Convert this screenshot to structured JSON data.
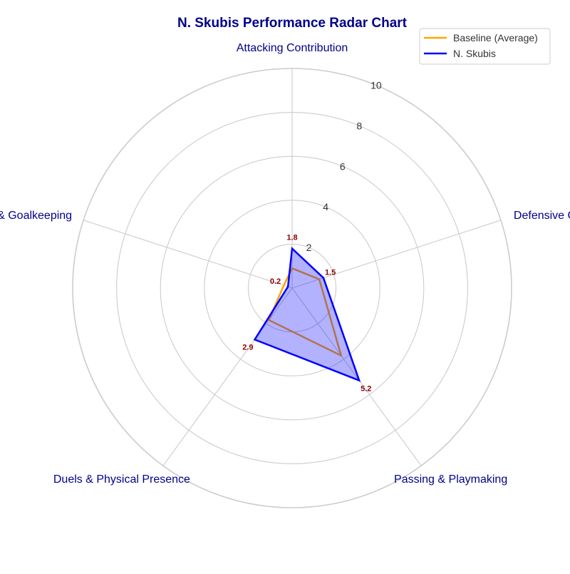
{
  "chart_data": {
    "type": "radar",
    "title": "N. Skubis Performance Radar Chart",
    "categories": [
      "Attacking Contribution",
      "Defensive Capability",
      "Passing & Playmaking",
      "Duels & Physical Presence",
      "Discipline & Goalkeeping"
    ],
    "rlim": [
      0,
      10
    ],
    "r_ticks": [
      "2",
      "4",
      "6",
      "8",
      "10"
    ],
    "r_tick_values": [
      2,
      4,
      6,
      8,
      10
    ],
    "grid": true,
    "legend_position": "top-right",
    "series": [
      {
        "name": "Baseline (Average)",
        "values": [
          0.9,
          1.3,
          3.8,
          1.8,
          0.4
        ],
        "color": "#FFA500",
        "filled": false
      },
      {
        "name": "N. Skubis",
        "values": [
          1.8,
          1.5,
          5.2,
          2.9,
          0.2
        ],
        "value_labels": [
          "1.8",
          "1.5",
          "5.2",
          "2.9",
          "0.2"
        ],
        "color": "#0000FF",
        "fill_color": "#0000FF",
        "fill_opacity": 0.3,
        "filled": true
      }
    ],
    "colors": {
      "title": "#00008B",
      "axis_label": "#00008B",
      "data_label": "#8B0000",
      "grid": "#cccccc"
    }
  }
}
